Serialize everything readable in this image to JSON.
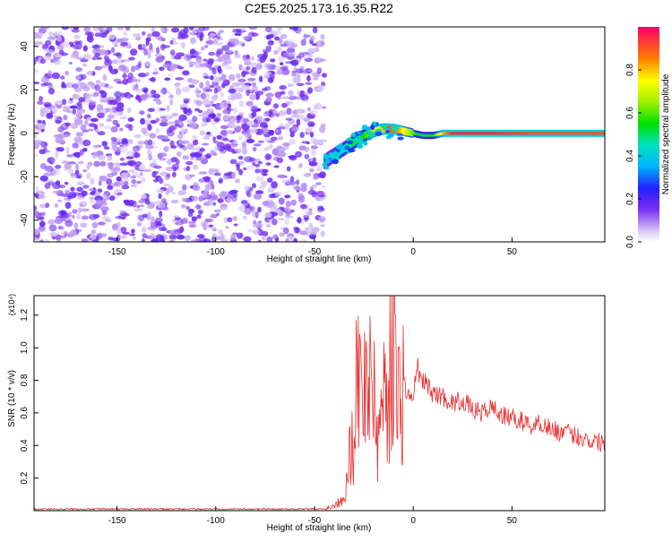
{
  "title": "C2E5.2025.173.16.35.R22",
  "colors": {
    "snr_line": "#e8302f",
    "frame": "#000000",
    "heat_low": "#c9b3f2",
    "heat_mid": "#7b2ff0",
    "heat_high": "#ff0033"
  },
  "chart_data": [
    {
      "type": "heatmap",
      "title": "C2E5.2025.173.16.35.R22",
      "xlabel": "Height of straight line (km)",
      "ylabel": "Frequency (Hz)",
      "xlim": [
        -192,
        97
      ],
      "ylim": [
        -50,
        49
      ],
      "xticks": [
        -150,
        -100,
        -50,
        0,
        50
      ],
      "yticks": [
        -40,
        -20,
        0,
        20,
        40
      ],
      "colorbar": {
        "label": "Normalized spectral amplitude",
        "range": [
          0,
          1
        ],
        "ticks": [
          "0.0",
          "0.2",
          "0.4",
          "0.6",
          "0.8"
        ],
        "colormap": "rainbow-purple-to-red"
      },
      "noise_region_x": [
        -192,
        -45
      ],
      "ridge": {
        "x": [
          -45,
          -40,
          -35,
          -30,
          -25,
          -20,
          -15,
          -10,
          -5,
          0,
          5,
          10,
          15,
          20,
          40,
          60,
          80,
          97
        ],
        "freq": [
          -13,
          -10,
          -7,
          -4,
          -1,
          1,
          2,
          2,
          1,
          0,
          -1,
          -1,
          0,
          0,
          0,
          0,
          0,
          0
        ],
        "amplitude": [
          0.3,
          0.4,
          0.45,
          0.5,
          0.55,
          0.7,
          0.8,
          0.9,
          0.75,
          0.6,
          0.5,
          0.55,
          0.8,
          0.95,
          0.95,
          0.9,
          0.9,
          0.9
        ]
      },
      "grid": false
    },
    {
      "type": "line",
      "xlabel": "Height of straight line (km)",
      "ylabel": "SNR (10 * v/v)",
      "scale_label": "(x10⁴)",
      "xlim": [
        -192,
        97
      ],
      "ylim": [
        0,
        1.32
      ],
      "xticks": [
        -150,
        -100,
        -50,
        0,
        50
      ],
      "yticks": [
        "0.2",
        "0.4",
        "0.6",
        "0.8",
        "1.0",
        "1.2"
      ],
      "grid": false,
      "series": [
        {
          "x": [
            -192,
            -150,
            -100,
            -60,
            -45,
            -40,
            -35,
            -32,
            -30,
            -28,
            -26,
            -24,
            -22,
            -20,
            -18,
            -16,
            -14,
            -12,
            -10,
            -8,
            -6,
            -4,
            -2,
            0,
            2,
            4,
            6,
            8,
            10,
            15,
            20,
            25,
            30,
            35,
            40,
            45,
            50,
            55,
            60,
            65,
            70,
            75,
            80,
            85,
            90,
            97
          ],
          "y": [
            0.01,
            0.01,
            0.01,
            0.01,
            0.01,
            0.03,
            0.1,
            0.35,
            0.55,
            0.95,
            0.6,
            1.05,
            0.7,
            0.9,
            0.4,
            0.65,
            0.85,
            0.75,
            1.32,
            0.6,
            0.85,
            0.75,
            0.7,
            0.68,
            0.9,
            0.78,
            0.8,
            0.75,
            0.72,
            0.7,
            0.66,
            0.68,
            0.62,
            0.6,
            0.64,
            0.58,
            0.57,
            0.55,
            0.52,
            0.54,
            0.5,
            0.48,
            0.47,
            0.45,
            0.43,
            0.42
          ]
        }
      ]
    }
  ]
}
